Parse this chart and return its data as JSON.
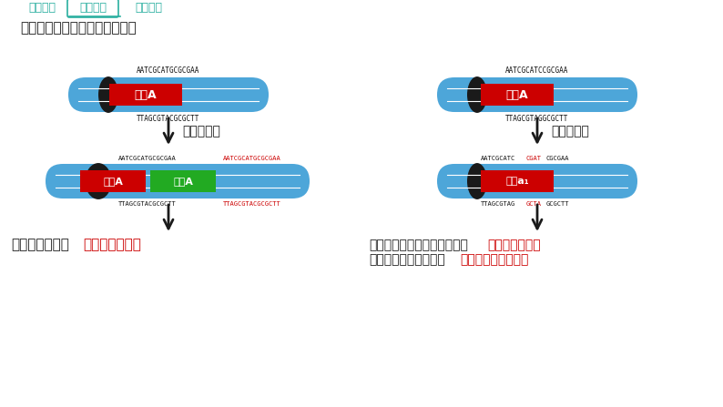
{
  "bg_color": "#ffffff",
  "header_color": "#2aafa0",
  "title_text": "辨析：染色体重复与碱基对插入",
  "nav_items": [
    "学习目标",
    "新知学习",
    "课堂总结"
  ],
  "nav_active": 1,
  "chrom_body_color": "#4da6d9",
  "chrom_centromere_color": "#1a1a1a",
  "gene_A_color": "#cc0000",
  "gene_A2_color": "#22aa22",
  "seq_top_left": "AATCGCATGCGCGAA",
  "seq_bot_left": "TTAGCGTACGCGCTT",
  "seq_top_right": "AATCGCATCCGCGAA",
  "seq_bot_right": "TTAGCGTAGGCGCTT",
  "seq_top_left2_black": "AATCGCATGCGCGAA",
  "seq_top_left2_red": "AATCGCATGCGCGAA",
  "seq_bot_left2_black": "TTAGCGTACGCGCTT",
  "seq_bot_left2_red": "TTAGCGTACGCGCTT",
  "seq_top_right2_black": "AATCGCATC",
  "seq_top_right2_red": "CGAT",
  "seq_top_right2_black2": "CGCGAA",
  "seq_bot_right2_black": "TTAGCGTAG",
  "seq_bot_right2_red": "GCTA",
  "seq_bot_right2_black2": "GCGCTT",
  "arrow_color": "#1a1a1a",
  "label_left_arrow": "染色体重复",
  "label_right_arrow": "碱基对插入",
  "bottom_left_black": "染色体增长且使",
  "bottom_left_red": "基因的数量增加",
  "bottom_right_line1_black": "改变基因中的碱基对的序列，",
  "bottom_right_line1_red": "改变基因种类。",
  "bottom_right_line2_black": "不改变染色体的长度且",
  "bottom_right_line2_red": "不使基因的数量增加"
}
